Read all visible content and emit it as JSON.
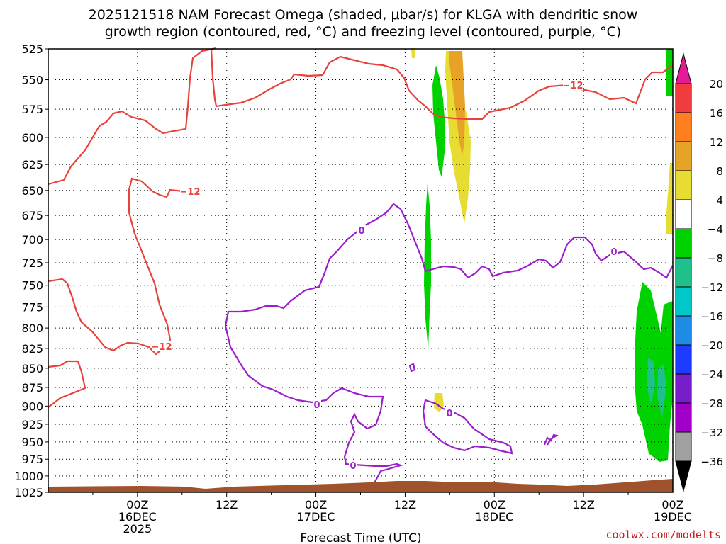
{
  "chart_data": {
    "type": "contour",
    "title_line1": "2025121518 NAM Forecast Omega (shaded, μbar/s) for KLGA with dendritic snow",
    "title_line2": "growth region (contoured, red, °C) and freezing level (contoured, purple, °C)",
    "xlabel": "Forecast Time (UTC)",
    "credit": "coolwx.com/modelts",
    "y_axis": {
      "unit": "mb",
      "log_scale": true,
      "range": [
        525,
        1025
      ],
      "ticks": [
        "525",
        "550",
        "575",
        "600",
        "625",
        "650",
        "675",
        "700",
        "725",
        "750",
        "775",
        "800",
        "825",
        "850",
        "875",
        "900",
        "925",
        "950",
        "975",
        "1000",
        "1025"
      ]
    },
    "x_axis": {
      "range_hours": [
        -12,
        72
      ],
      "ticks": [
        {
          "hour": 0,
          "lines": [
            "00Z",
            "16DEC",
            "2025"
          ]
        },
        {
          "hour": 12,
          "lines": [
            "12Z"
          ]
        },
        {
          "hour": 24,
          "lines": [
            "00Z",
            "17DEC"
          ]
        },
        {
          "hour": 36,
          "lines": [
            "12Z"
          ]
        },
        {
          "hour": 48,
          "lines": [
            "00Z",
            "18DEC"
          ]
        },
        {
          "hour": 60,
          "lines": [
            "12Z"
          ]
        },
        {
          "hour": 72,
          "lines": [
            "00Z",
            "19DEC"
          ]
        }
      ]
    },
    "grid": true,
    "colorbar": {
      "labels": [
        "20",
        "16",
        "12",
        "8",
        "4",
        "−4",
        "−8",
        "−12",
        "−16",
        "−20",
        "−24",
        "−28",
        "−32",
        "−36"
      ],
      "colors": [
        "#f03c3c",
        "#ff7f1e",
        "#e6a328",
        "#e6dc32",
        "#ffffff",
        "#00d200",
        "#1fc08c",
        "#00c8c8",
        "#1e8ce6",
        "#1e3cff",
        "#781ec8",
        "#a000c8",
        "#a0a0a0"
      ],
      "over_color": "#e6199b",
      "under_color": "#000000"
    },
    "series": [
      {
        "name": "dendritic snow growth region",
        "color": "#e8423c",
        "contour_labels": [
          "−12",
          "−12",
          "−12"
        ]
      },
      {
        "name": "freezing level",
        "color": "#9a1ecb",
        "contour_labels": [
          "0",
          "0",
          "0",
          "0",
          "0"
        ]
      }
    ],
    "terrain_color": "#a0522d"
  }
}
